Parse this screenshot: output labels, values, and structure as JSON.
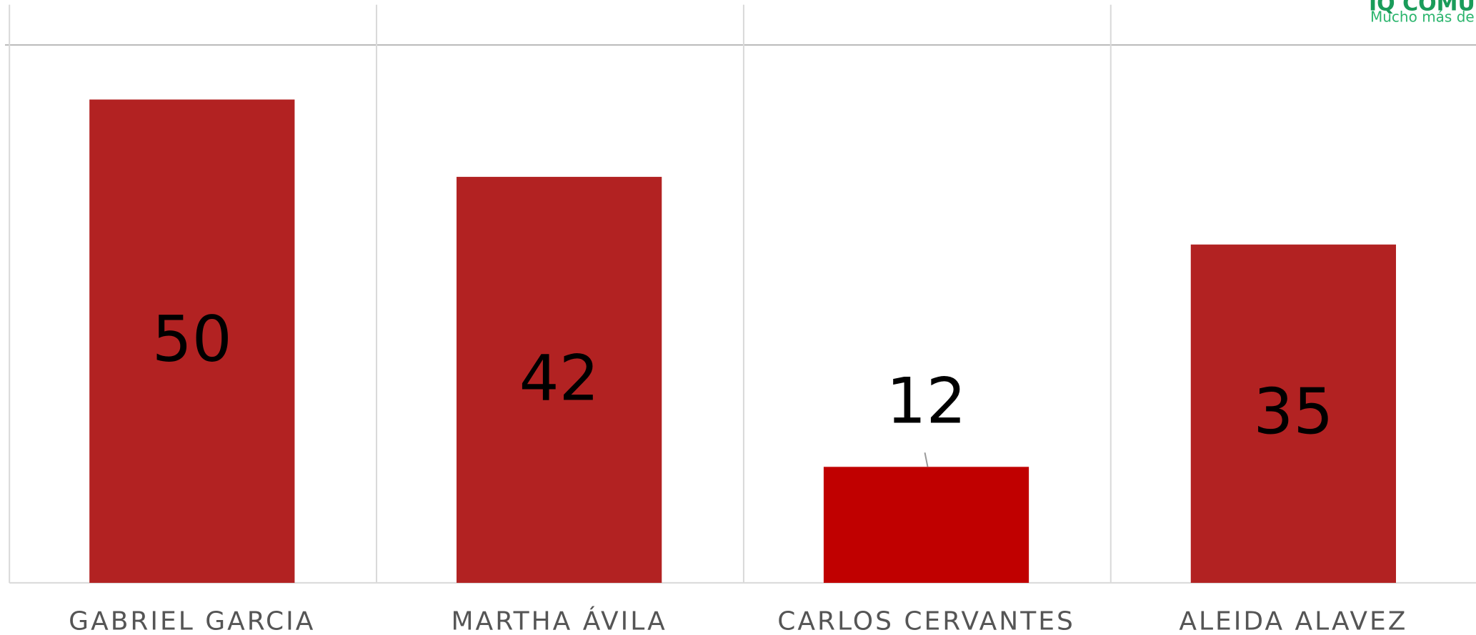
{
  "chart_data": {
    "type": "bar",
    "categories": [
      "GABRIEL GARCIA",
      "MARTHA ÁVILA",
      "CARLOS CERVANTES",
      "ALEIDA ALAVEZ"
    ],
    "values": [
      50,
      42,
      12,
      35
    ],
    "colors": [
      "#b22222",
      "#b22222",
      "#c00000",
      "#b22222"
    ],
    "ylim": [
      0,
      60
    ],
    "grid": true,
    "logo": {
      "title": "IQ COMUN",
      "subtitle": "Mucho más de lo"
    }
  }
}
